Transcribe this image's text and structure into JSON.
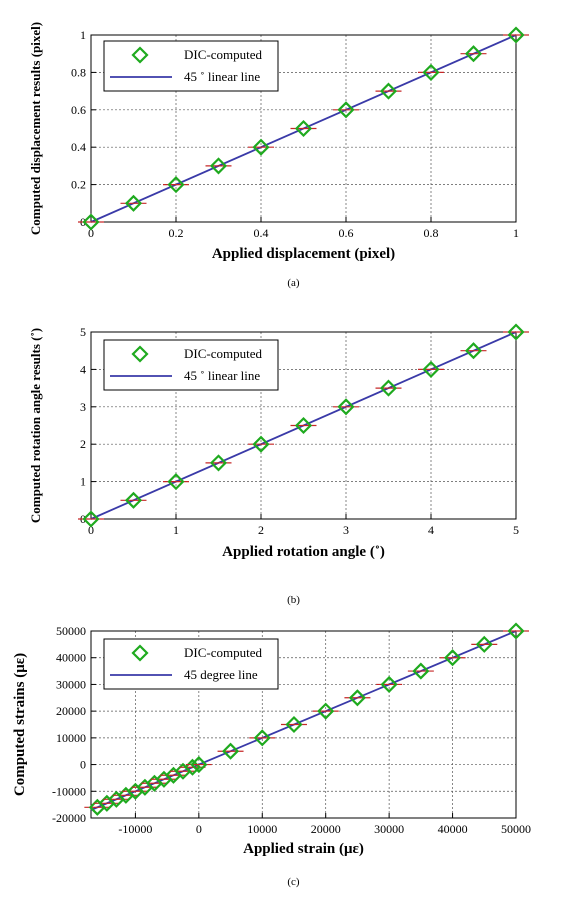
{
  "chart_data": [
    {
      "type": "scatter",
      "panel_label": "(a)",
      "xlabel": "Applied displacement (pixel)",
      "ylabel": "Computed displacement results (pixel)",
      "xlim": [
        0,
        1
      ],
      "ylim": [
        0,
        1
      ],
      "xticks": [
        0,
        0.2,
        0.4,
        0.6,
        0.8,
        1
      ],
      "xtick_labels": [
        "0",
        "0.2",
        "0.4",
        "0.6",
        "0.8",
        "1"
      ],
      "yticks": [
        0,
        0.2,
        0.4,
        0.6,
        0.8,
        1
      ],
      "ytick_labels": [
        "0",
        "0.2",
        "0.4",
        "0.6",
        "0.8",
        "1"
      ],
      "grid": true,
      "legend": "top-left",
      "series": [
        {
          "name": "DIC-computed",
          "kind": "marker",
          "color": "#1faa1f",
          "x": [
            0,
            0.1,
            0.2,
            0.3,
            0.4,
            0.5,
            0.6,
            0.7,
            0.8,
            0.9,
            1.0
          ],
          "y": [
            0,
            0.1,
            0.2,
            0.3,
            0.4,
            0.5,
            0.6,
            0.7,
            0.8,
            0.9,
            1.0
          ]
        },
        {
          "name": "45 ˚ linear line",
          "kind": "line",
          "color": "#3a3aa8",
          "x": [
            0,
            1
          ],
          "y": [
            0,
            1
          ]
        }
      ]
    },
    {
      "type": "scatter",
      "panel_label": "(b)",
      "xlabel": "Applied rotation angle (˚)",
      "ylabel": "Computed rotation angle results (˚)",
      "xlim": [
        0,
        5
      ],
      "ylim": [
        0,
        5
      ],
      "xticks": [
        0,
        1,
        2,
        3,
        4,
        5
      ],
      "xtick_labels": [
        "0",
        "1",
        "2",
        "3",
        "4",
        "5"
      ],
      "yticks": [
        0,
        1,
        2,
        3,
        4,
        5
      ],
      "ytick_labels": [
        "0",
        "1",
        "2",
        "3",
        "4",
        "5"
      ],
      "grid": true,
      "legend": "top-left",
      "series": [
        {
          "name": "DIC-computed",
          "kind": "marker",
          "color": "#1faa1f",
          "x": [
            0,
            0.5,
            1,
            1.5,
            2,
            2.5,
            3,
            3.5,
            4,
            4.5,
            5
          ],
          "y": [
            0,
            0.5,
            1,
            1.5,
            2,
            2.5,
            3,
            3.5,
            4,
            4.5,
            5
          ]
        },
        {
          "name": "45 ˚ linear line",
          "kind": "line",
          "color": "#3a3aa8",
          "x": [
            0,
            5
          ],
          "y": [
            0,
            5
          ]
        }
      ]
    },
    {
      "type": "scatter",
      "panel_label": "(c)",
      "xlabel": "Applied strain (με)",
      "ylabel": "Computed strains (με)",
      "xlim": [
        -17000,
        50000
      ],
      "ylim": [
        -20000,
        50000
      ],
      "xticks": [
        -10000,
        0,
        10000,
        20000,
        30000,
        40000,
        50000
      ],
      "xtick_labels": [
        "-10000",
        "0",
        "10000",
        "20000",
        "30000",
        "40000",
        "50000"
      ],
      "yticks": [
        -20000,
        -10000,
        0,
        10000,
        20000,
        30000,
        40000,
        50000
      ],
      "ytick_labels": [
        "-20000",
        "-10000",
        "0",
        "10000",
        "20000",
        "30000",
        "40000",
        "50000"
      ],
      "grid": true,
      "legend": "top-left",
      "series": [
        {
          "name": "DIC-computed",
          "kind": "marker",
          "color": "#1faa1f",
          "x": [
            -16000,
            -14500,
            -13000,
            -11500,
            -10000,
            -8500,
            -7000,
            -5500,
            -4000,
            -2500,
            -1000,
            0,
            5000,
            10000,
            15000,
            20000,
            25000,
            30000,
            35000,
            40000,
            45000,
            50000
          ],
          "y": [
            -16000,
            -14500,
            -13000,
            -11500,
            -10000,
            -8500,
            -7000,
            -5500,
            -4000,
            -2500,
            -1000,
            0,
            5000,
            10000,
            15000,
            20000,
            25000,
            30000,
            35000,
            40000,
            45000,
            50000
          ]
        },
        {
          "name": "45 degree line",
          "kind": "line",
          "color": "#3a3aa8",
          "x": [
            -17000,
            50000
          ],
          "y": [
            -17000,
            50000
          ]
        }
      ]
    }
  ]
}
